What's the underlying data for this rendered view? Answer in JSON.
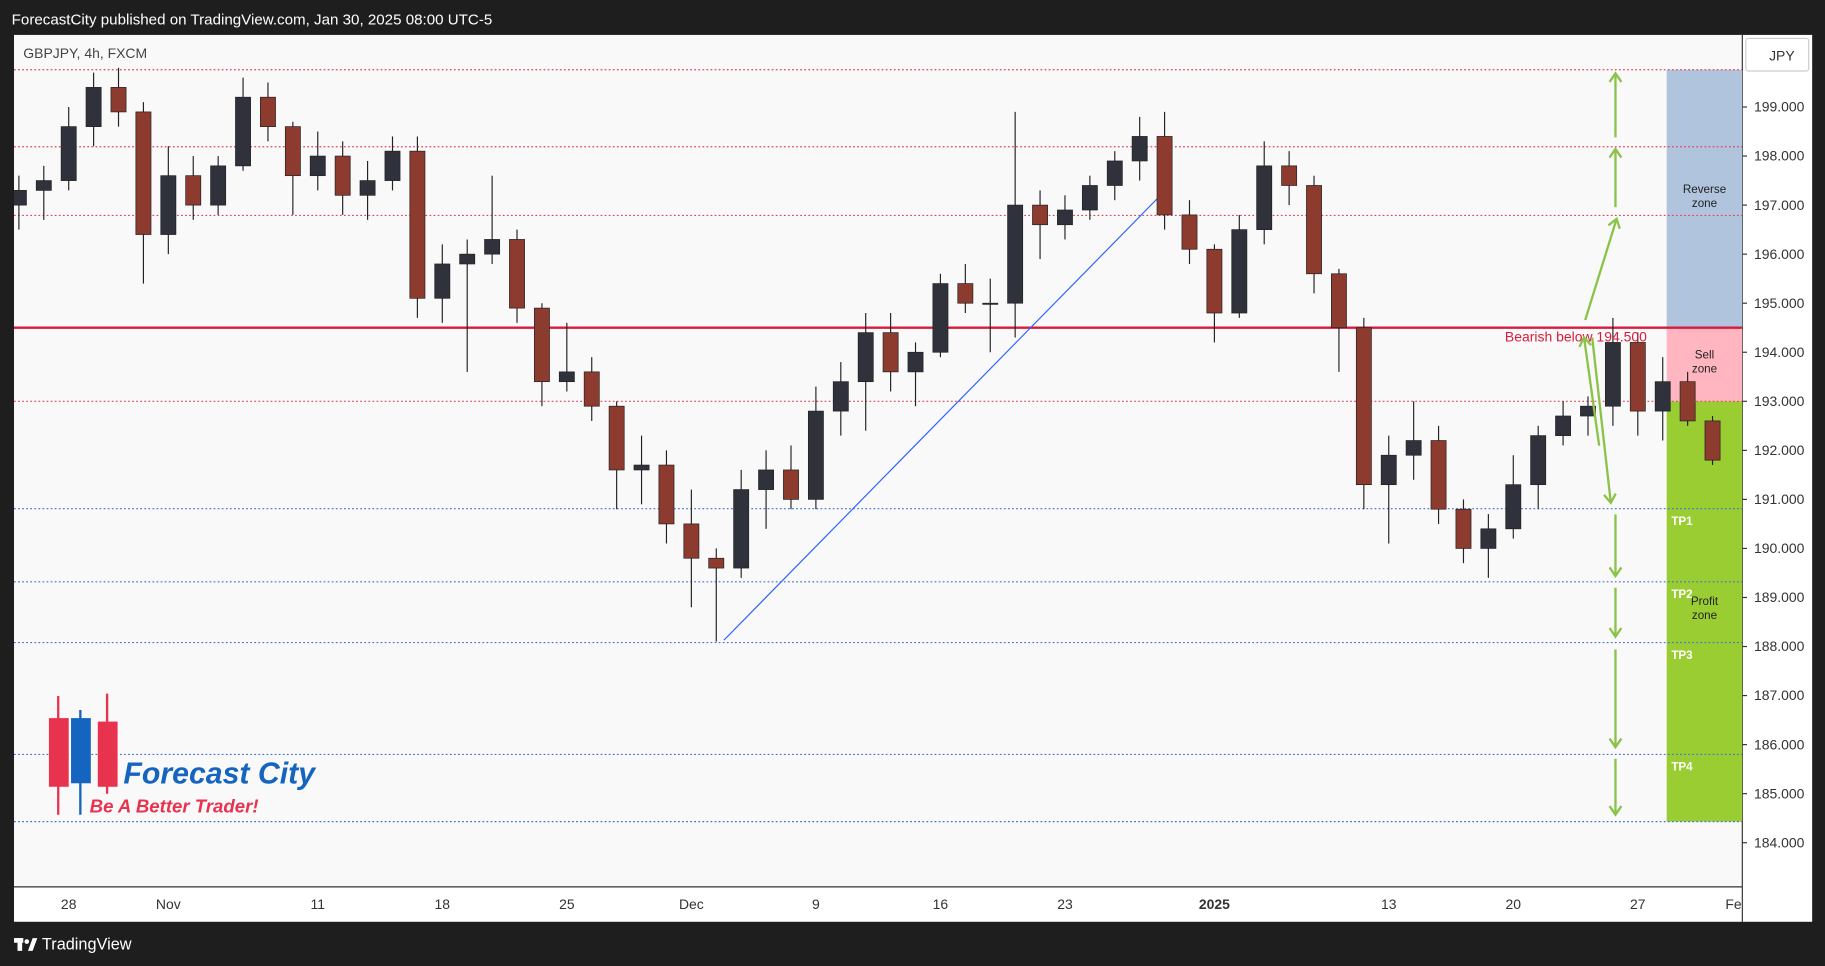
{
  "header": {
    "published": "ForecastCity published on TradingView.com, Jan 30, 2025 08:00 UTC-5",
    "brand": "TradingView"
  },
  "logo": {
    "name": "Forecast City",
    "tagline": "Be A Better Trader!"
  },
  "chart_data": {
    "type": "candlestick",
    "symbol": "GBPJPY, 4h, FXCM",
    "currency": "JPY",
    "categories": [
      null,
      null,
      "28",
      null,
      null,
      null,
      "Nov",
      null,
      null,
      null,
      null,
      null,
      "11",
      null,
      null,
      null,
      null,
      "18",
      null,
      null,
      null,
      null,
      "25",
      null,
      null,
      null,
      null,
      "Dec",
      null,
      null,
      null,
      null,
      "9",
      null,
      null,
      null,
      null,
      "16",
      null,
      null,
      null,
      null,
      "23",
      null,
      null,
      null,
      null,
      null,
      "2025",
      null,
      null,
      null,
      null,
      null,
      null,
      "13",
      null,
      null,
      null,
      null,
      "20",
      null,
      null,
      null,
      null,
      "27",
      null,
      null,
      null,
      "Feb"
    ],
    "series": [
      {
        "up_color": "#2f323b",
        "down_color": "#8c3b2e",
        "open": [
          197.0,
          197.3,
          197.5,
          198.6,
          199.4,
          198.9,
          196.4,
          197.6,
          197.0,
          197.8,
          199.2,
          198.6,
          197.6,
          198.0,
          197.2,
          197.5,
          198.1,
          195.1,
          195.8,
          196.0,
          196.3,
          194.9,
          193.4,
          193.6,
          192.9,
          191.6,
          191.7,
          190.5,
          189.8,
          189.6,
          191.2,
          191.6,
          191.0,
          192.8,
          193.4,
          194.4,
          193.6,
          194.0,
          195.4,
          195.0,
          195.0,
          197.0,
          196.6,
          196.9,
          197.4,
          197.9,
          198.4,
          196.8,
          196.1,
          194.8,
          196.5,
          197.8,
          197.4,
          195.6,
          194.5,
          191.3,
          191.9,
          192.2,
          190.8,
          190.0,
          190.4,
          191.3,
          192.3,
          192.7,
          192.9,
          194.2,
          192.8,
          193.4,
          192.6,
          null
        ],
        "high": [
          197.6,
          197.8,
          199.0,
          199.7,
          199.8,
          199.1,
          198.2,
          198.0,
          198.0,
          199.6,
          199.5,
          198.7,
          198.5,
          198.3,
          197.9,
          198.4,
          198.4,
          196.2,
          196.3,
          197.6,
          196.5,
          195.0,
          194.6,
          193.9,
          193.0,
          192.3,
          192.0,
          191.2,
          190.0,
          191.6,
          192.0,
          192.1,
          193.3,
          193.8,
          194.8,
          194.8,
          194.2,
          195.6,
          195.8,
          195.5,
          198.9,
          197.3,
          197.2,
          197.6,
          198.1,
          198.8,
          198.9,
          197.1,
          196.2,
          196.8,
          198.3,
          198.1,
          197.6,
          195.7,
          194.7,
          192.3,
          193.0,
          192.5,
          191.0,
          190.7,
          191.9,
          192.5,
          193.0,
          193.1,
          194.7,
          194.4,
          193.9,
          193.6,
          192.7,
          null
        ],
        "low": [
          196.5,
          196.7,
          197.3,
          198.2,
          198.6,
          195.4,
          196.0,
          196.7,
          196.8,
          197.7,
          198.3,
          196.8,
          197.3,
          196.8,
          196.7,
          197.3,
          194.7,
          194.6,
          193.6,
          195.8,
          194.6,
          192.9,
          193.2,
          192.6,
          190.8,
          190.9,
          190.1,
          188.8,
          188.1,
          189.4,
          190.4,
          190.8,
          190.8,
          192.3,
          192.4,
          193.2,
          192.9,
          193.9,
          194.8,
          194.0,
          194.3,
          195.9,
          196.3,
          196.7,
          197.1,
          197.5,
          196.5,
          195.8,
          194.2,
          194.7,
          196.2,
          197.0,
          195.2,
          193.6,
          190.8,
          190.1,
          191.4,
          190.5,
          189.7,
          189.4,
          190.2,
          190.8,
          192.1,
          192.3,
          192.5,
          192.3,
          192.2,
          192.5,
          191.7,
          null
        ],
        "close": [
          197.3,
          197.5,
          198.6,
          199.4,
          198.9,
          196.4,
          197.6,
          197.0,
          197.8,
          199.2,
          198.6,
          197.6,
          198.0,
          197.2,
          197.5,
          198.1,
          195.1,
          195.8,
          196.0,
          196.3,
          194.9,
          193.4,
          193.6,
          192.9,
          191.6,
          191.7,
          190.5,
          189.8,
          189.6,
          191.2,
          191.6,
          191.0,
          192.8,
          193.4,
          194.4,
          193.6,
          194.0,
          195.4,
          195.0,
          195.0,
          197.0,
          196.6,
          196.9,
          197.4,
          197.9,
          198.4,
          196.8,
          196.1,
          194.8,
          196.5,
          197.8,
          197.4,
          195.6,
          194.5,
          191.3,
          191.9,
          192.2,
          190.8,
          190.0,
          190.4,
          191.3,
          192.3,
          192.7,
          192.9,
          194.2,
          192.8,
          193.4,
          192.6,
          191.8,
          null
        ]
      }
    ],
    "ylim": [
      183.1,
      200.47
    ],
    "yticks": [
      {
        "value": 184,
        "label": "184.000"
      },
      {
        "value": 185,
        "label": "185.000"
      },
      {
        "value": 186,
        "label": "186.000"
      },
      {
        "value": 187,
        "label": "187.000"
      },
      {
        "value": 188,
        "label": "188.000"
      },
      {
        "value": 189,
        "label": "189.000"
      },
      {
        "value": 190,
        "label": "190.000"
      },
      {
        "value": 191,
        "label": "191.000"
      },
      {
        "value": 192,
        "label": "192.000"
      },
      {
        "value": 193,
        "label": "193.000"
      },
      {
        "value": 194,
        "label": "194.000"
      },
      {
        "value": 195,
        "label": "195.000"
      },
      {
        "value": 196,
        "label": "196.000"
      },
      {
        "value": 197,
        "label": "197.000"
      },
      {
        "value": 198,
        "label": "198.000"
      },
      {
        "value": 199,
        "label": "199.000"
      }
    ],
    "levels": [
      {
        "value": 199.76,
        "color": "#e0455b"
      },
      {
        "value": 198.19,
        "color": "#e0455b"
      },
      {
        "value": 196.79,
        "color": "#e0455b"
      },
      {
        "value": 193.0,
        "color": "#e0455b"
      },
      {
        "value": 184.43,
        "color": "#3f6fd8"
      }
    ],
    "key_level": {
      "value": 194.5,
      "color": "#d81b3c",
      "label": "Bearish below 194.500"
    },
    "zones": [
      {
        "label": "Reverse zone",
        "from": 194.5,
        "to": 199.76,
        "color": "#b0c4de"
      },
      {
        "label": "Sell zone",
        "from": 193.0,
        "to": 194.5,
        "color": "#ffb6c1"
      },
      {
        "label": "Profit zone",
        "from": 184.43,
        "to": 193.0,
        "color": "#9acd32"
      }
    ],
    "targets": [
      {
        "label": "TP1",
        "value": 190.81
      },
      {
        "label": "TP2",
        "value": 189.32
      },
      {
        "label": "TP3",
        "value": 188.08
      },
      {
        "label": "TP4",
        "value": 185.8
      }
    ],
    "target_color": "#3f6fd8",
    "trendline": {
      "start": 188.13,
      "end": 197.39,
      "color": "#2962ff"
    },
    "arrow_color": "#8bc34a"
  }
}
